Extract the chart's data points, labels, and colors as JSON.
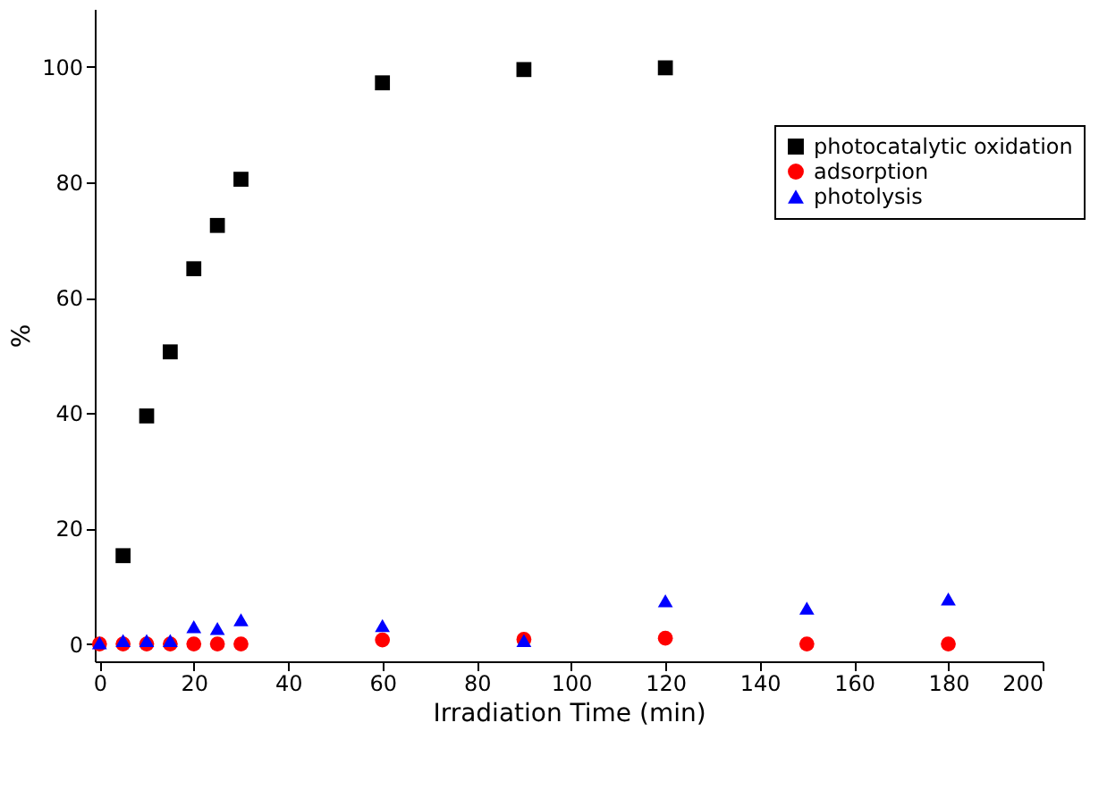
{
  "chart_data": {
    "type": "scatter",
    "xlabel": "Irradiation Time (min)",
    "ylabel": "%",
    "xlim": [
      -1,
      200
    ],
    "xticks": [
      0,
      20,
      40,
      60,
      80,
      100,
      120,
      140,
      160,
      180,
      200
    ],
    "ylim": [
      -3,
      110
    ],
    "yticks": [
      0,
      20,
      40,
      60,
      80,
      100
    ],
    "grid": false,
    "legend": "top right",
    "series": [
      {
        "name": "photocatalytic oxidation",
        "color": "#000000",
        "marker": "square",
        "x": [
          5,
          10,
          15,
          20,
          25,
          30,
          60,
          90,
          120
        ],
        "values": [
          15.3,
          39.5,
          50.6,
          65,
          72.5,
          80.5,
          97.2,
          99.5,
          99.8
        ]
      },
      {
        "name": "adsorption",
        "color": "#ff0000",
        "marker": "circle",
        "x": [
          0,
          5,
          10,
          15,
          20,
          25,
          30,
          60,
          90,
          120,
          150,
          180
        ],
        "values": [
          0,
          0,
          0,
          0,
          0,
          0,
          0,
          0.7,
          0.8,
          1,
          0,
          0
        ]
      },
      {
        "name": "photolysis",
        "color": "#0000ff",
        "marker": "triangle",
        "x": [
          0,
          5,
          10,
          15,
          20,
          25,
          30,
          60,
          90,
          120,
          150,
          180
        ],
        "values": [
          0.2,
          0.6,
          0.6,
          0.6,
          3,
          2.7,
          4.2,
          3.2,
          0.6,
          7.5,
          6.2,
          7.8
        ]
      }
    ]
  }
}
